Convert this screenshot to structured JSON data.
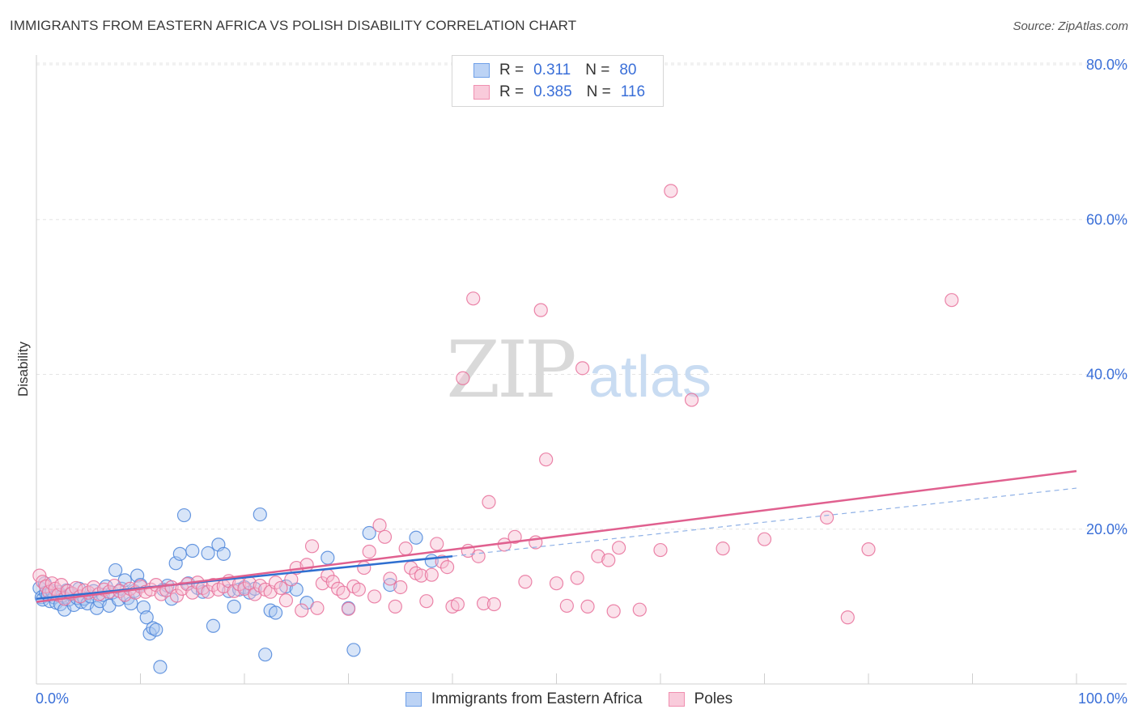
{
  "header": {
    "title": "IMMIGRANTS FROM EASTERN AFRICA VS POLISH DISABILITY CORRELATION CHART",
    "source": "Source: ZipAtlas.com"
  },
  "watermark": {
    "zip": "ZIP",
    "atlas": "atlas"
  },
  "legend": {
    "series": [
      {
        "r_label": "R =",
        "r_value": "0.311",
        "n_label": "N =",
        "n_value": "80",
        "color": "#6fa0e8"
      },
      {
        "r_label": "R =",
        "r_value": "0.385",
        "n_label": "N =",
        "n_value": "116",
        "color": "#f08fb0"
      }
    ]
  },
  "bottom_legend": [
    {
      "label": "Immigrants from Eastern Africa",
      "color": "#6fa0e8"
    },
    {
      "label": "Poles",
      "color": "#f08fb0"
    }
  ],
  "chart_data": {
    "type": "scatter",
    "ylabel": "Disability",
    "xlim": [
      0,
      100
    ],
    "ylim": [
      0,
      80
    ],
    "x_tick_labels": [
      "0.0%",
      "100.0%"
    ],
    "y_tick_values": [
      20,
      40,
      60,
      80
    ],
    "y_tick_labels": [
      "20.0%",
      "40.0%",
      "60.0%",
      "80.0%"
    ],
    "grid": true,
    "series": [
      {
        "name": "Immigrants from Eastern Africa",
        "color": "#4d86db",
        "fill": "#a9c6f0",
        "trend": {
          "x0": 0,
          "y0": 11.0,
          "x1": 40,
          "y1": 16.5,
          "dash_to": 100,
          "dash_y": 25.3
        },
        "points": [
          [
            0.3,
            12.4
          ],
          [
            0.5,
            11.2
          ],
          [
            0.6,
            10.9
          ],
          [
            0.8,
            13.0
          ],
          [
            0.9,
            11.8
          ],
          [
            1.1,
            11.5
          ],
          [
            1.3,
            10.7
          ],
          [
            1.5,
            12.0
          ],
          [
            1.7,
            11.2
          ],
          [
            1.9,
            10.5
          ],
          [
            2.1,
            11.9
          ],
          [
            2.3,
            10.3
          ],
          [
            2.5,
            11.4
          ],
          [
            2.7,
            9.6
          ],
          [
            2.9,
            12.1
          ],
          [
            3.1,
            10.9
          ],
          [
            3.3,
            11.6
          ],
          [
            3.6,
            10.2
          ],
          [
            3.9,
            11.1
          ],
          [
            4.1,
            12.3
          ],
          [
            4.3,
            10.6
          ],
          [
            4.6,
            11.0
          ],
          [
            4.9,
            10.4
          ],
          [
            5.2,
            11.3
          ],
          [
            5.5,
            12.0
          ],
          [
            5.8,
            9.8
          ],
          [
            6.1,
            10.7
          ],
          [
            6.4,
            11.5
          ],
          [
            6.7,
            12.6
          ],
          [
            7.0,
            10.1
          ],
          [
            7.3,
            11.8
          ],
          [
            7.6,
            14.7
          ],
          [
            7.9,
            10.9
          ],
          [
            8.2,
            12.3
          ],
          [
            8.5,
            13.4
          ],
          [
            8.8,
            11.1
          ],
          [
            9.1,
            10.4
          ],
          [
            9.4,
            12.0
          ],
          [
            9.7,
            14.0
          ],
          [
            10.0,
            12.8
          ],
          [
            10.3,
            9.9
          ],
          [
            10.6,
            8.6
          ],
          [
            10.9,
            6.5
          ],
          [
            11.2,
            7.2
          ],
          [
            11.5,
            7.0
          ],
          [
            11.9,
            2.2
          ],
          [
            12.2,
            12.2
          ],
          [
            12.6,
            12.7
          ],
          [
            13.0,
            11.0
          ],
          [
            13.4,
            15.6
          ],
          [
            13.8,
            16.8
          ],
          [
            14.2,
            21.8
          ],
          [
            14.6,
            13.0
          ],
          [
            15.0,
            17.2
          ],
          [
            15.5,
            12.4
          ],
          [
            16.0,
            11.9
          ],
          [
            16.5,
            16.9
          ],
          [
            17.0,
            7.5
          ],
          [
            17.5,
            18.0
          ],
          [
            18.0,
            16.8
          ],
          [
            18.5,
            12.0
          ],
          [
            19.0,
            10.0
          ],
          [
            19.5,
            12.2
          ],
          [
            20.0,
            12.5
          ],
          [
            20.5,
            11.8
          ],
          [
            21.0,
            12.3
          ],
          [
            21.5,
            21.9
          ],
          [
            22.0,
            3.8
          ],
          [
            22.5,
            9.5
          ],
          [
            23.0,
            9.2
          ],
          [
            24.0,
            12.6
          ],
          [
            25.0,
            12.2
          ],
          [
            26.0,
            10.5
          ],
          [
            28.0,
            16.3
          ],
          [
            30.0,
            9.8
          ],
          [
            30.5,
            4.4
          ],
          [
            32.0,
            19.5
          ],
          [
            34.0,
            12.8
          ],
          [
            36.5,
            18.9
          ],
          [
            38.0,
            15.9
          ]
        ]
      },
      {
        "name": "Poles",
        "color": "#e8709a",
        "fill": "#f7bfd2",
        "trend": {
          "x0": 0,
          "y0": 10.6,
          "x1": 100,
          "y1": 27.5
        },
        "points": [
          [
            0.3,
            14.0
          ],
          [
            0.6,
            13.2
          ],
          [
            0.9,
            12.6
          ],
          [
            1.2,
            11.9
          ],
          [
            1.5,
            13.0
          ],
          [
            1.8,
            12.3
          ],
          [
            2.1,
            11.5
          ],
          [
            2.4,
            12.8
          ],
          [
            2.7,
            11.0
          ],
          [
            3.0,
            12.0
          ],
          [
            3.4,
            11.7
          ],
          [
            3.8,
            12.4
          ],
          [
            4.2,
            11.3
          ],
          [
            4.6,
            12.1
          ],
          [
            5.0,
            11.8
          ],
          [
            5.5,
            12.5
          ],
          [
            6.0,
            11.6
          ],
          [
            6.5,
            12.2
          ],
          [
            7.0,
            11.9
          ],
          [
            7.5,
            12.7
          ],
          [
            8.0,
            12.0
          ],
          [
            8.5,
            11.5
          ],
          [
            9.0,
            12.3
          ],
          [
            9.5,
            11.8
          ],
          [
            10.0,
            12.6
          ],
          [
            10.5,
            11.9
          ],
          [
            11.0,
            12.2
          ],
          [
            11.5,
            12.8
          ],
          [
            12.0,
            11.6
          ],
          [
            12.5,
            12.1
          ],
          [
            13.0,
            12.5
          ],
          [
            13.5,
            11.4
          ],
          [
            14.0,
            12.3
          ],
          [
            14.5,
            12.9
          ],
          [
            15.0,
            11.8
          ],
          [
            15.5,
            13.1
          ],
          [
            16.0,
            12.4
          ],
          [
            16.5,
            11.9
          ],
          [
            17.0,
            12.8
          ],
          [
            17.5,
            12.2
          ],
          [
            18.0,
            12.6
          ],
          [
            18.5,
            13.3
          ],
          [
            19.0,
            12.0
          ],
          [
            19.5,
            12.9
          ],
          [
            20.0,
            12.3
          ],
          [
            20.5,
            13.0
          ],
          [
            21.0,
            11.6
          ],
          [
            21.5,
            12.7
          ],
          [
            22.0,
            12.2
          ],
          [
            22.5,
            11.9
          ],
          [
            23.0,
            13.1
          ],
          [
            23.5,
            12.4
          ],
          [
            24.0,
            10.8
          ],
          [
            24.5,
            13.5
          ],
          [
            25.0,
            15.0
          ],
          [
            25.5,
            9.5
          ],
          [
            26.0,
            15.4
          ],
          [
            26.5,
            17.8
          ],
          [
            27.0,
            9.8
          ],
          [
            27.5,
            13.0
          ],
          [
            28.0,
            14.0
          ],
          [
            28.5,
            13.2
          ],
          [
            29.0,
            12.3
          ],
          [
            29.5,
            11.8
          ],
          [
            30.0,
            9.7
          ],
          [
            30.5,
            12.6
          ],
          [
            31.0,
            12.2
          ],
          [
            31.5,
            15.0
          ],
          [
            32.0,
            17.1
          ],
          [
            32.5,
            11.3
          ],
          [
            33.0,
            20.5
          ],
          [
            33.5,
            19.0
          ],
          [
            34.0,
            13.6
          ],
          [
            34.5,
            10.0
          ],
          [
            35.0,
            12.5
          ],
          [
            35.5,
            17.5
          ],
          [
            36.0,
            15.0
          ],
          [
            36.5,
            14.3
          ],
          [
            37.0,
            14.0
          ],
          [
            37.5,
            10.7
          ],
          [
            38.0,
            14.1
          ],
          [
            38.5,
            18.1
          ],
          [
            39.0,
            15.8
          ],
          [
            39.5,
            15.1
          ],
          [
            40.0,
            10.0
          ],
          [
            40.5,
            10.3
          ],
          [
            41.0,
            39.5
          ],
          [
            41.5,
            17.2
          ],
          [
            42.0,
            49.8
          ],
          [
            42.5,
            16.5
          ],
          [
            43.0,
            10.4
          ],
          [
            43.5,
            23.5
          ],
          [
            44.0,
            10.3
          ],
          [
            45.0,
            18.0
          ],
          [
            46.0,
            19.0
          ],
          [
            47.0,
            13.2
          ],
          [
            48.0,
            18.3
          ],
          [
            48.5,
            48.3
          ],
          [
            49.0,
            29.0
          ],
          [
            50.0,
            13.0
          ],
          [
            51.0,
            10.1
          ],
          [
            52.0,
            13.7
          ],
          [
            52.5,
            40.8
          ],
          [
            53.0,
            10.0
          ],
          [
            54.0,
            16.5
          ],
          [
            55.0,
            16.0
          ],
          [
            55.5,
            9.4
          ],
          [
            56.0,
            17.6
          ],
          [
            58.0,
            9.6
          ],
          [
            60.0,
            17.3
          ],
          [
            61.0,
            63.7
          ],
          [
            63.0,
            36.7
          ],
          [
            66.0,
            17.5
          ],
          [
            70.0,
            18.7
          ],
          [
            76.0,
            21.5
          ],
          [
            78.0,
            8.6
          ],
          [
            80.0,
            17.4
          ],
          [
            88.0,
            49.6
          ]
        ]
      }
    ]
  }
}
